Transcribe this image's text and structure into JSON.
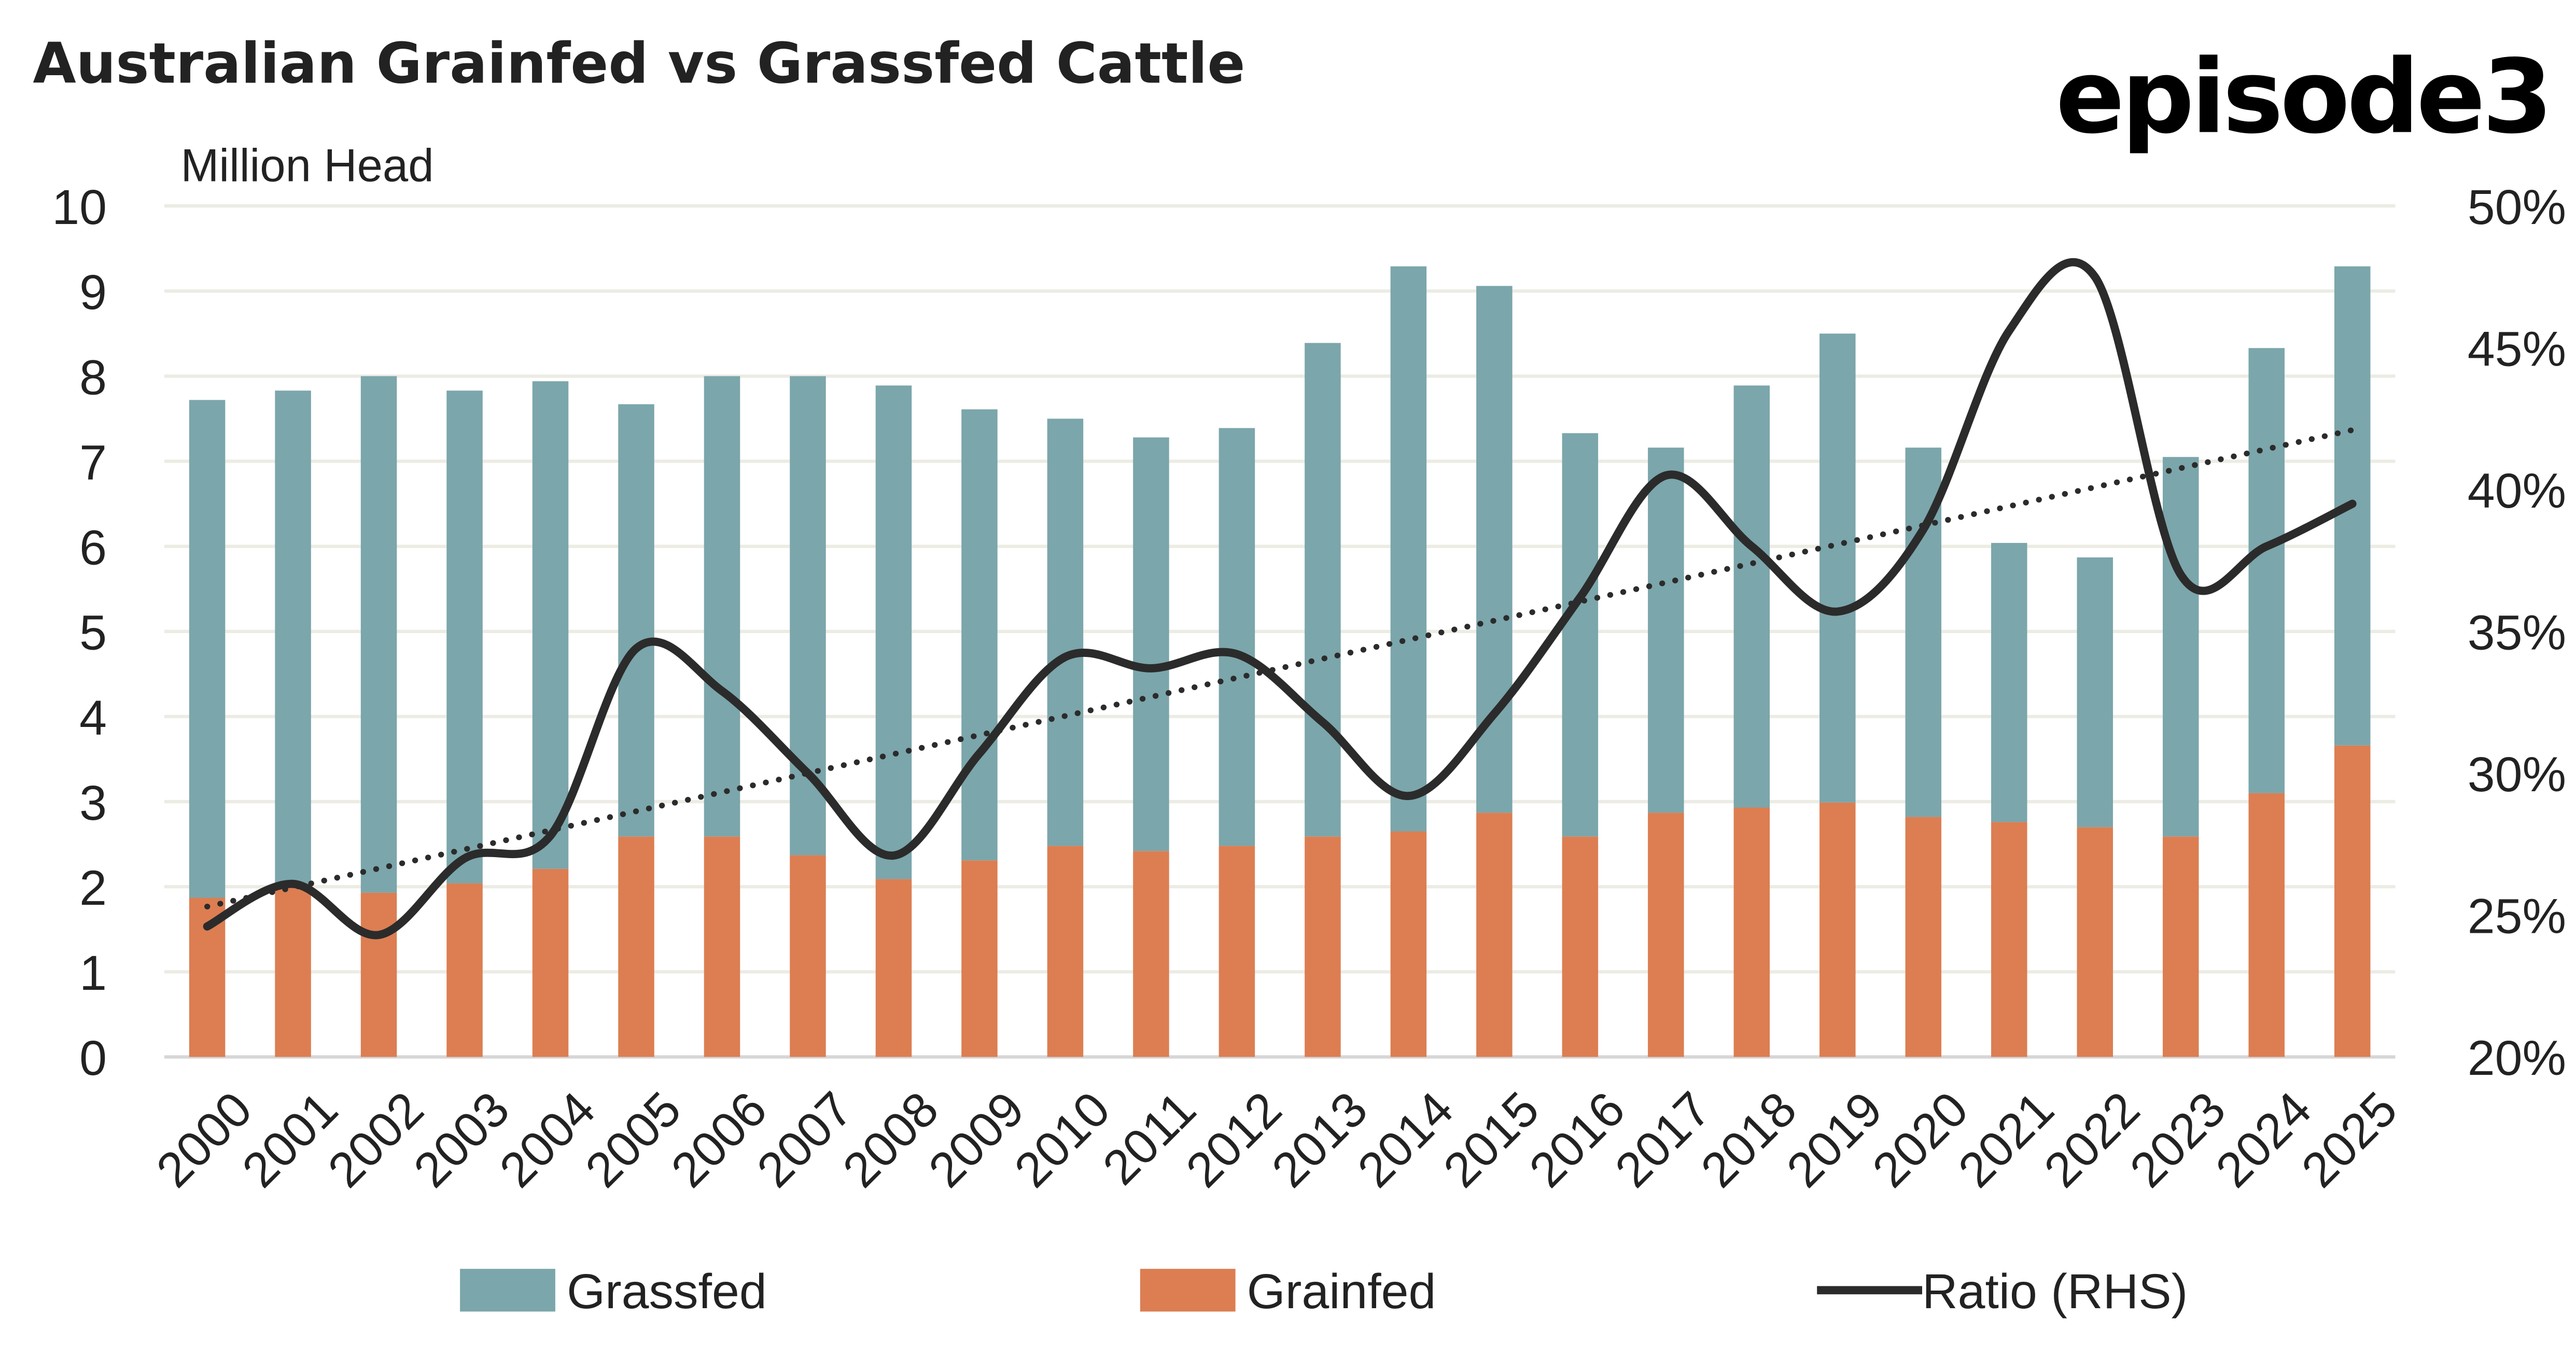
{
  "header": {
    "title": "Australian Grainfed vs Grassfed Cattle",
    "logo": "episode3"
  },
  "chart_data": {
    "type": "bar",
    "stacked": true,
    "title": "Australian Grainfed vs Grassfed Cattle",
    "ylabel": "Million Head",
    "y2label": "Ratio (RHS)",
    "ylim": [
      0,
      10
    ],
    "y2lim": [
      0.2,
      0.5
    ],
    "yticks": [
      "0",
      "1",
      "2",
      "3",
      "4",
      "5",
      "6",
      "7",
      "8",
      "9",
      "10"
    ],
    "y2ticks": [
      "20%",
      "25%",
      "30%",
      "35%",
      "40%",
      "45%",
      "50%"
    ],
    "grid": true,
    "legend_position": "bottom",
    "categories": [
      "2000",
      "2001",
      "2002",
      "2003",
      "2004",
      "2005",
      "2006",
      "2007",
      "2008",
      "2009",
      "2010",
      "2011",
      "2012",
      "2013",
      "2014",
      "2015",
      "2016",
      "2017",
      "2018",
      "2019",
      "2020",
      "2021",
      "2022",
      "2023",
      "2024",
      "2025"
    ],
    "totals": [
      7.72,
      7.83,
      8.0,
      7.83,
      7.94,
      7.67,
      8.0,
      8.0,
      7.89,
      7.61,
      7.5,
      7.28,
      7.39,
      8.39,
      9.29,
      9.06,
      7.33,
      7.16,
      7.89,
      8.5,
      7.16,
      6.04,
      5.87,
      7.05,
      8.33,
      9.29
    ],
    "series": [
      {
        "name": "Grainfed",
        "type": "bar",
        "color": "#DC7E52",
        "values": [
          1.87,
          2.0,
          1.93,
          2.04,
          2.21,
          2.59,
          2.59,
          2.37,
          2.09,
          2.31,
          2.48,
          2.42,
          2.48,
          2.59,
          2.65,
          2.87,
          2.59,
          2.87,
          2.93,
          2.99,
          2.82,
          2.76,
          2.7,
          2.59,
          3.1,
          3.66
        ]
      },
      {
        "name": "Grassfed",
        "type": "bar",
        "color": "#7BA6AB",
        "values": [
          5.85,
          5.83,
          6.07,
          5.79,
          5.73,
          5.08,
          5.41,
          5.63,
          5.8,
          5.3,
          5.02,
          4.86,
          4.91,
          5.8,
          6.64,
          6.19,
          4.74,
          4.29,
          4.96,
          5.51,
          4.34,
          3.28,
          3.17,
          4.46,
          5.23,
          5.63
        ]
      },
      {
        "name": "Ratio (RHS)",
        "type": "line",
        "axis": "right",
        "color": "#2B2B2B",
        "values": [
          0.246,
          0.261,
          0.243,
          0.27,
          0.278,
          0.344,
          0.329,
          0.3,
          0.271,
          0.307,
          0.341,
          0.337,
          0.342,
          0.318,
          0.292,
          0.321,
          0.362,
          0.405,
          0.38,
          0.357,
          0.386,
          0.456,
          0.475,
          0.37,
          0.38,
          0.395
        ]
      },
      {
        "name": "Ratio trend",
        "type": "trendline",
        "axis": "right",
        "style": "dotted",
        "color": "#2B2B2B",
        "values_start_end": [
          0.253,
          0.421
        ]
      }
    ],
    "legend": [
      "Grassfed",
      "Grainfed",
      "Ratio (RHS)"
    ]
  }
}
